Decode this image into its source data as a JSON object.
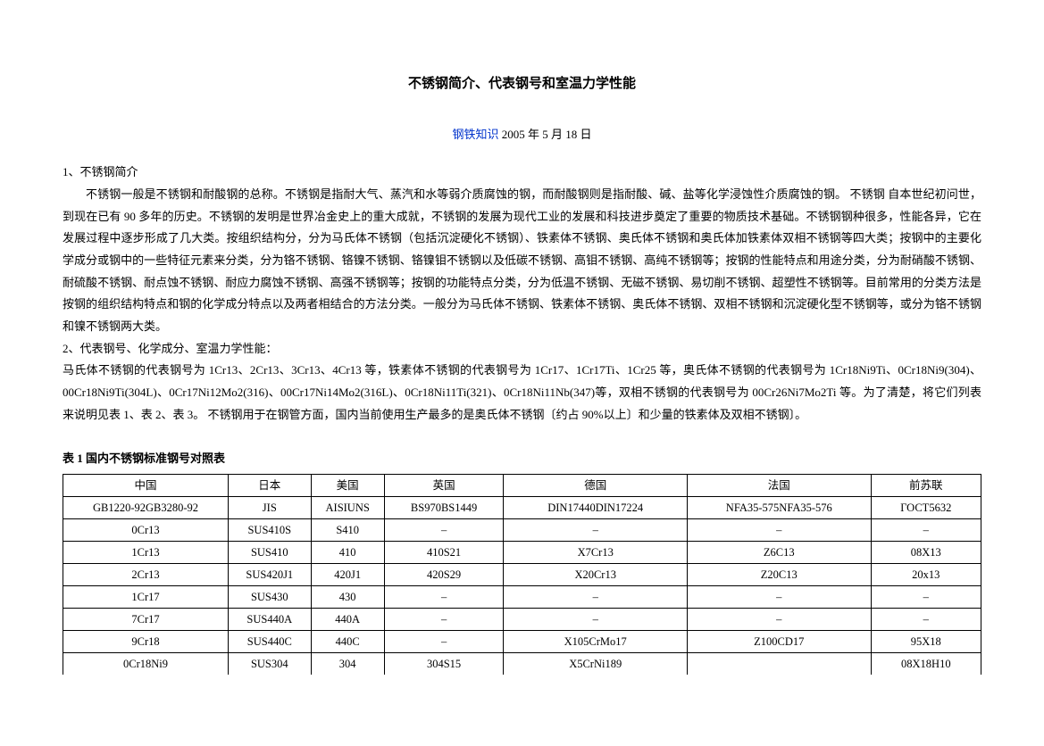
{
  "title": "不锈钢简介、代表钢号和室温力学性能",
  "subtitle_link": "钢铁知识",
  "subtitle_date": " 2005 年 5 月 18 日",
  "section1_heading": "1、不锈钢简介",
  "para1": "不锈钢一般是不锈钢和耐酸钢的总称。不锈钢是指耐大气、蒸汽和水等弱介质腐蚀的钢，而耐酸钢则是指耐酸、碱、盐等化学浸蚀性介质腐蚀的钢。 不锈钢 自本世纪初问世，到现在已有 90 多年的历史。不锈钢的发明是世界冶金史上的重大成就，不锈钢的发展为现代工业的发展和科技进步奠定了重要的物质技术基础。不锈钢钢种很多，性能各异，它在发展过程中逐步形成了几大类。按组织结构分，分为马氏体不锈钢（包括沉淀硬化不锈钢）、铁素体不锈钢、奥氏体不锈钢和奥氏体加铁素体双相不锈钢等四大类；按钢中的主要化学成分或钢中的一些特征元素来分类，分为铬不锈钢、铬镍不锈钢、铬镍钼不锈钢以及低碳不锈钢、高钼不锈钢、高纯不锈钢等；按钢的性能特点和用途分类，分为耐硝酸不锈钢、耐硫酸不锈钢、耐点蚀不锈钢、耐应力腐蚀不锈钢、高强不锈钢等；按钢的功能特点分类，分为低温不锈钢、无磁不锈钢、易切削不锈钢、超塑性不锈钢等。目前常用的分类方法是按钢的组织结构特点和钢的化学成分特点以及两者相结合的方法分类。一般分为马氏体不锈钢、铁素体不锈钢、奥氏体不锈钢、双相不锈钢和沉淀硬化型不锈钢等，或分为铬不锈钢和镍不锈钢两大类。",
  "section2_heading": "2、代表钢号、化学成分、室温力学性能：",
  "para2": "马氏体不锈钢的代表钢号为 1Cr13、2Cr13、3Cr13、4Cr13 等，铁素体不锈钢的代表钢号为 1Cr17、1Cr17Ti、1Cr25 等，奥氏体不锈钢的代表钢号为 1Cr18Ni9Ti、0Cr18Ni9(304)、00Cr18Ni9Ti(304L)、0Cr17Ni12Mo2(316)、00Cr17Ni14Mo2(316L)、0Cr18Ni11Ti(321)、0Cr18Ni11Nb(347)等，双相不锈钢的代表钢号为 00Cr26Ni7Mo2Ti 等。为了清楚，将它们列表来说明见表 1、表 2、表 3。 不锈钢用于在钢管方面，国内当前使用生产最多的是奥氏体不锈钢〔约占 90%以上〕和少量的铁素体及双相不锈钢〕。",
  "table1_title": "表 1 国内不锈钢标准钢号对照表",
  "table1": {
    "columns": [
      "中国",
      "日本",
      "美国",
      "英国",
      "德国",
      "法国",
      "前苏联"
    ],
    "col_widths": [
      "18%",
      "9%",
      "8%",
      "13%",
      "20%",
      "20%",
      "12%"
    ],
    "rows": [
      [
        "GB1220-92GB3280-92",
        "JIS",
        "AISIUNS",
        "BS970BS1449",
        "DIN17440DIN17224",
        "NFA35-575NFA35-576",
        "ГОСТ5632"
      ],
      [
        "0Cr13",
        "SUS410S",
        "S410",
        "–",
        "–",
        "–",
        "–"
      ],
      [
        "1Cr13",
        "SUS410",
        "410",
        "410S21",
        "X7Cr13",
        "Z6C13",
        "08X13"
      ],
      [
        "2Cr13",
        "SUS420J1",
        "420J1",
        "420S29",
        "X20Cr13",
        "Z20C13",
        "20x13"
      ],
      [
        "1Cr17",
        "SUS430",
        "430",
        "–",
        "–",
        "–",
        "–"
      ],
      [
        "7Cr17",
        "SUS440A",
        "440A",
        "–",
        "–",
        "–",
        "–"
      ],
      [
        "9Cr18",
        "SUS440C",
        "440C",
        "–",
        "X105CrMo17",
        "Z100CD17",
        "95X18"
      ],
      [
        "0Cr18Ni9",
        "SUS304",
        "304",
        "304S15",
        "X5CrNi189",
        "",
        "08X18H10"
      ]
    ]
  }
}
